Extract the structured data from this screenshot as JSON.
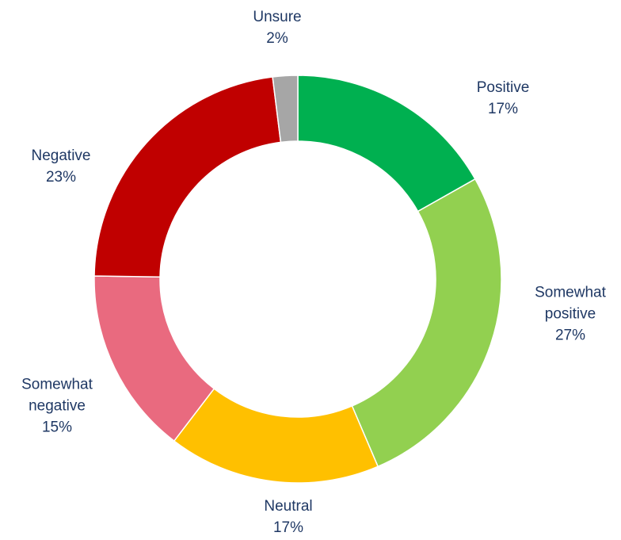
{
  "chart_data": {
    "type": "donut",
    "categories": [
      "Positive",
      "Somewhat positive",
      "Neutral",
      "Somewhat negative",
      "Negative",
      "Unsure"
    ],
    "values": [
      17,
      27,
      17,
      15,
      23,
      2
    ],
    "value_labels": [
      "17%",
      "27%",
      "17%",
      "15%",
      "23%",
      "2%"
    ],
    "colors": [
      "#00b050",
      "#92d050",
      "#ffc000",
      "#e96a7f",
      "#c00000",
      "#a6a6a6"
    ]
  }
}
